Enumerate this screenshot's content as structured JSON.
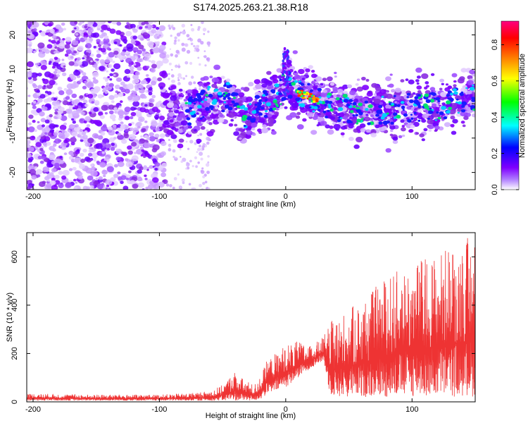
{
  "title": "S174.2025.263.21.38.R18",
  "chart_data": [
    {
      "type": "heatmap",
      "name": "spectrogram",
      "xlabel": "Height of straight line (km)",
      "ylabel": "Frequency (Hz)",
      "xlim": [
        -205,
        150
      ],
      "ylim": [
        -25,
        24
      ],
      "x_ticks": [
        -200,
        -100,
        0,
        100
      ],
      "y_ticks": [
        -20,
        -10,
        0,
        10,
        20
      ],
      "colorbar": {
        "label": "Normalized spectral amplitude",
        "range": [
          0,
          0.93
        ],
        "ticks": [
          0.0,
          0.2,
          0.4,
          0.6,
          0.8
        ],
        "colors": [
          "#ffffff",
          "#7f00ff",
          "#0000ff",
          "#00ffff",
          "#00ff00",
          "#ffff00",
          "#ff8000",
          "#ff0000",
          "#ff0080"
        ]
      },
      "ridge": {
        "x": [
          -95,
          -80,
          -60,
          -45,
          -30,
          -15,
          -5,
          0,
          5,
          10,
          20,
          30,
          40,
          60,
          80,
          100,
          120,
          150
        ],
        "freq": [
          -2,
          -3,
          1,
          2,
          -4,
          0,
          3,
          6,
          5,
          3,
          2,
          0,
          -1,
          -2,
          -2,
          -1,
          -1,
          2
        ]
      }
    },
    {
      "type": "line",
      "name": "snr",
      "xlabel": "Height of straight line (km)",
      "ylabel": "SNR (10 * v/v)",
      "xlim": [
        -205,
        150
      ],
      "ylim": [
        0,
        700
      ],
      "x_ticks": [
        -200,
        -100,
        0,
        100
      ],
      "y_ticks": [
        0,
        200,
        400,
        600
      ],
      "color": "#ee3333",
      "envelope": {
        "x": [
          -205,
          -150,
          -100,
          -80,
          -60,
          -50,
          -40,
          -35,
          -25,
          -20,
          -15,
          0,
          10,
          20,
          30,
          35,
          40,
          60,
          80,
          100,
          120,
          150
        ],
        "lower": [
          5,
          5,
          5,
          5,
          5,
          5,
          5,
          5,
          5,
          10,
          30,
          60,
          100,
          140,
          170,
          30,
          20,
          20,
          20,
          20,
          20,
          20
        ],
        "upper": [
          35,
          30,
          30,
          35,
          45,
          70,
          130,
          100,
          70,
          110,
          170,
          240,
          250,
          230,
          270,
          330,
          350,
          420,
          520,
          580,
          620,
          700
        ]
      }
    }
  ]
}
